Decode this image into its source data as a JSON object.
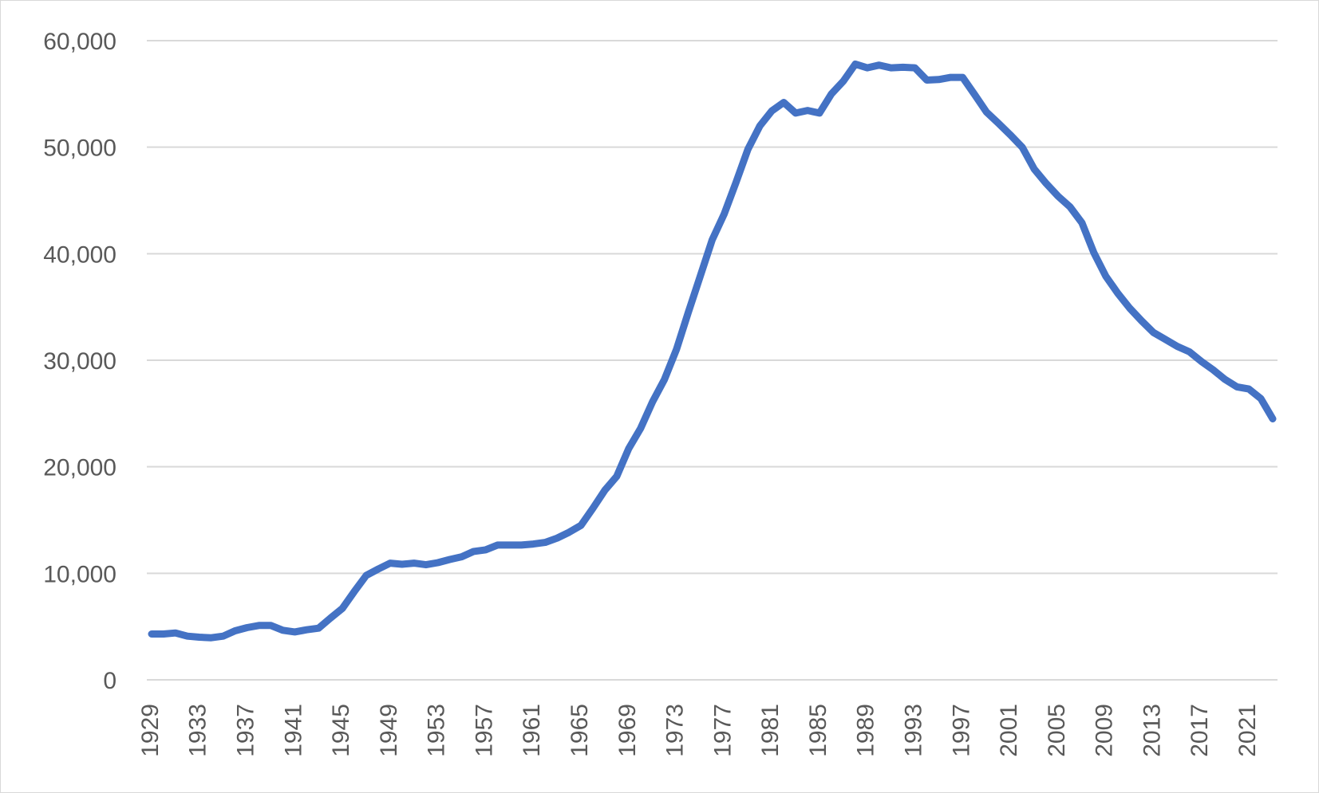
{
  "chart_data": {
    "type": "line",
    "title": "",
    "xlabel": "",
    "ylabel": "",
    "grid": true,
    "legend": "none",
    "ylim": [
      0,
      60000
    ],
    "y_ticks": [
      0,
      10000,
      20000,
      30000,
      40000,
      50000,
      60000
    ],
    "y_tick_labels": [
      "0",
      "10,000",
      "20,000",
      "30,000",
      "40,000",
      "50,000",
      "60,000"
    ],
    "x_tick_labels": [
      "1929",
      "1933",
      "1937",
      "1941",
      "1945",
      "1949",
      "1953",
      "1957",
      "1961",
      "1965",
      "1969",
      "1973",
      "1977",
      "1981",
      "1985",
      "1989",
      "1993",
      "1997",
      "2001",
      "2005",
      "2009",
      "2013",
      "2017",
      "2021"
    ],
    "x": [
      1929,
      1930,
      1931,
      1932,
      1933,
      1934,
      1935,
      1936,
      1937,
      1938,
      1939,
      1940,
      1941,
      1942,
      1943,
      1944,
      1945,
      1946,
      1947,
      1948,
      1949,
      1950,
      1951,
      1952,
      1953,
      1954,
      1955,
      1956,
      1957,
      1958,
      1959,
      1960,
      1961,
      1962,
      1963,
      1964,
      1965,
      1966,
      1967,
      1968,
      1969,
      1970,
      1971,
      1972,
      1973,
      1974,
      1975,
      1976,
      1977,
      1978,
      1979,
      1980,
      1981,
      1982,
      1983,
      1984,
      1985,
      1986,
      1987,
      1988,
      1989,
      1990,
      1991,
      1992,
      1993,
      1994,
      1995,
      1996,
      1997,
      1998,
      1999,
      2000,
      2001,
      2002,
      2003,
      2004,
      2005,
      2006,
      2007,
      2008,
      2009,
      2010,
      2011,
      2012,
      2013,
      2014,
      2015,
      2016,
      2017,
      2018,
      2019,
      2020,
      2021,
      2022,
      2023
    ],
    "series": [
      {
        "color": "#4472c4",
        "values": [
          4300,
          4300,
          4400,
          4100,
          4000,
          3950,
          4100,
          4600,
          4900,
          5100,
          5100,
          4650,
          4500,
          4700,
          4850,
          5800,
          6700,
          8300,
          9800,
          10400,
          10950,
          10850,
          10950,
          10800,
          11000,
          11300,
          11550,
          12050,
          12200,
          12650,
          12650,
          12650,
          12750,
          12900,
          13300,
          13850,
          14500,
          16100,
          17800,
          19100,
          21700,
          23600,
          26100,
          28200,
          31000,
          34500,
          37900,
          41300,
          43700,
          46700,
          49800,
          52000,
          53400,
          54200,
          53200,
          53450,
          53200,
          55000,
          56200,
          57800,
          57450,
          57700,
          57450,
          57500,
          57450,
          56300,
          56350,
          56550,
          56550,
          54950,
          53300,
          52250,
          51150,
          50000,
          47950,
          46600,
          45400,
          44400,
          42900,
          40100,
          37900,
          36300,
          34900,
          33700,
          32600,
          31950,
          31300,
          30800,
          29900,
          29100,
          28200,
          27500,
          27300,
          26400,
          24500
        ]
      }
    ]
  }
}
